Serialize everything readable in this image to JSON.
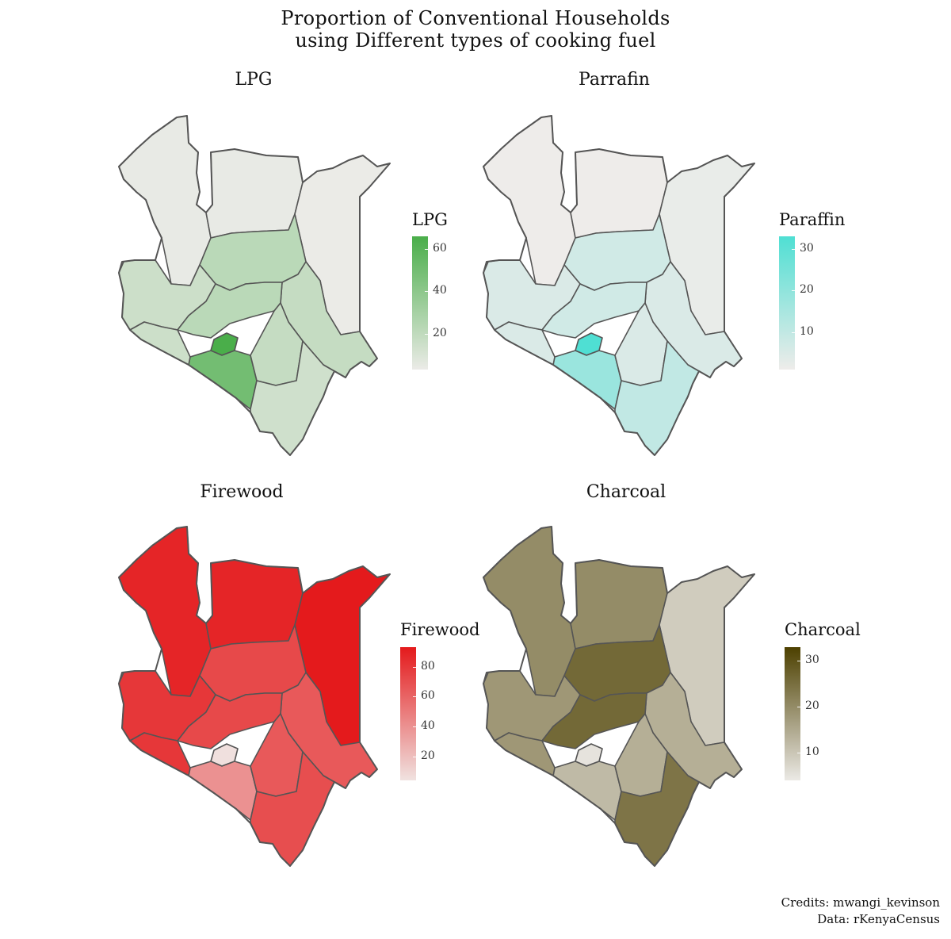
{
  "title_line1": "Proportion of Conventional Households",
  "title_line2": "using Different types of cooking fuel",
  "panels": [
    {
      "id": "lpg",
      "title": "LPG",
      "legend_title": "LPG",
      "low_color": "#ebebe7",
      "high_color": "#4aae4a",
      "range": [
        3,
        66
      ],
      "ticks": [
        "20",
        "40",
        "60"
      ],
      "tick_values": [
        20,
        40,
        60
      ],
      "region_values": {
        "nairobi": 66,
        "kajiado": 50,
        "mid1": 22,
        "mid2": 18,
        "west": 15,
        "coast": 14,
        "northeast": 3,
        "north": 4
      }
    },
    {
      "id": "paraffin",
      "title": "Parrafin",
      "legend_title": "Paraffin",
      "low_color": "#eeecea",
      "high_color": "#4fdfd3",
      "range": [
        1,
        33
      ],
      "ticks": [
        "10",
        "20",
        "30"
      ],
      "tick_values": [
        10,
        20,
        30
      ],
      "region_values": {
        "nairobi": 33,
        "kajiado": 18,
        "mid1": 7,
        "mid2": 5,
        "west": 5,
        "coast": 10,
        "northeast": 2,
        "north": 1
      }
    },
    {
      "id": "firewood",
      "title": "Firewood",
      "legend_title": "Firewood",
      "low_color": "#f0e2e0",
      "high_color": "#e41a1c",
      "range": [
        4,
        93
      ],
      "ticks": [
        "20",
        "40",
        "60",
        "80"
      ],
      "tick_values": [
        20,
        40,
        60,
        80
      ],
      "region_values": {
        "nairobi": 5,
        "kajiado": 40,
        "mid1": 72,
        "mid2": 65,
        "west": 80,
        "coast": 70,
        "northeast": 93,
        "north": 88
      }
    },
    {
      "id": "charcoal",
      "title": "Charcoal",
      "legend_title": "Charcoal",
      "low_color": "#ebe9e5",
      "high_color": "#4d4000",
      "range": [
        4,
        33
      ],
      "ticks": [
        "10",
        "20",
        "30"
      ],
      "tick_values": [
        10,
        20,
        30
      ],
      "region_values": {
        "nairobi": 5,
        "kajiado": 12,
        "mid1": 26,
        "mid2": 14,
        "west": 18,
        "coast": 24,
        "northeast": 9,
        "north": 20
      }
    }
  ],
  "credits_line1": "Credits: mwangi_kevinson",
  "credits_line2": "Data: rKenyaCensus"
}
